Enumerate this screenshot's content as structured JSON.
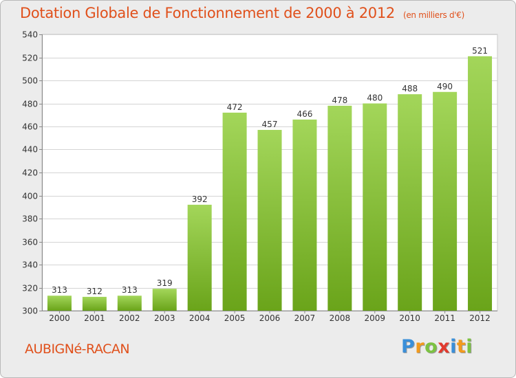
{
  "title": "Dotation Globale de Fonctionnement de 2000 à 2012",
  "unit_note": "(en milliers d'€)",
  "city": "AUBIGNé-RACAN",
  "logo": {
    "letters": [
      "P",
      "r",
      "o",
      "x",
      "i",
      "t",
      "i"
    ],
    "colors": [
      "#3a8fd9",
      "#f29a1d",
      "#7cc242",
      "#e23a2e",
      "#3a8fd9",
      "#f29a1d",
      "#7cc242"
    ]
  },
  "colors": {
    "accent": "#e0501b",
    "bar_light": "#a3d65a",
    "bar_dark": "#6aa41a",
    "plot_bg": "#ffffff",
    "grid": "#d4d4d4"
  },
  "chart_data": {
    "type": "bar",
    "categories": [
      "2000",
      "2001",
      "2002",
      "2003",
      "2004",
      "2005",
      "2006",
      "2007",
      "2008",
      "2009",
      "2010",
      "2011",
      "2012"
    ],
    "values": [
      313,
      312,
      313,
      319,
      392,
      472,
      457,
      466,
      478,
      480,
      488,
      490,
      521
    ],
    "ylim": [
      300,
      540
    ],
    "yticks": [
      300,
      320,
      340,
      360,
      380,
      400,
      420,
      440,
      460,
      480,
      500,
      520,
      540
    ],
    "grid": true,
    "legend": "none"
  }
}
